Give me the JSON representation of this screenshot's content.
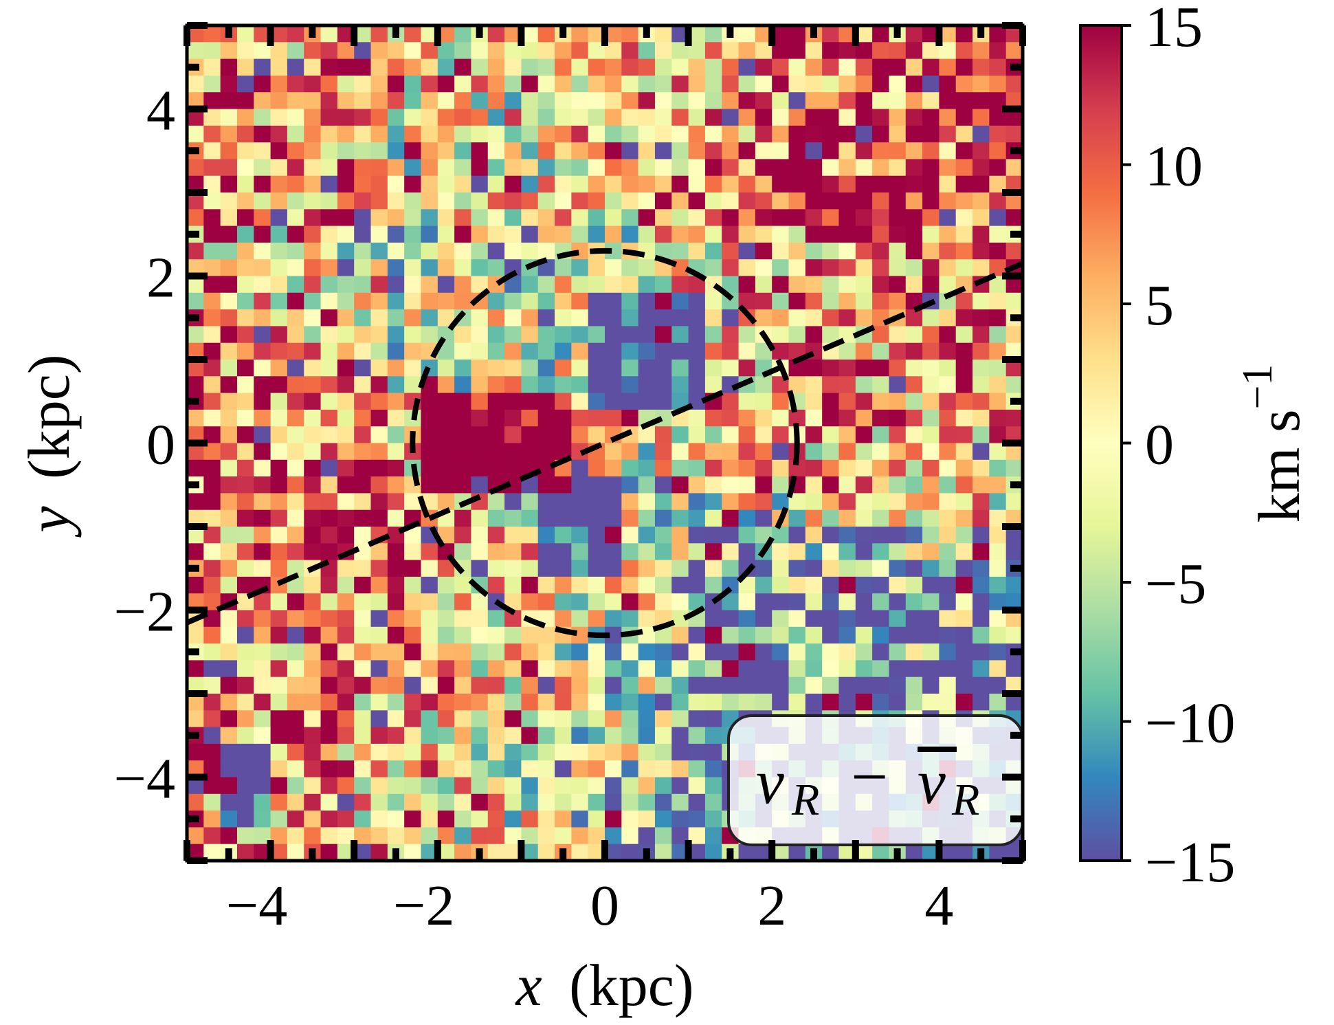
{
  "chart_data": {
    "type": "heatmap",
    "title": "",
    "xlabel_var": "x",
    "xlabel_unit": "(kpc)",
    "ylabel_var": "y",
    "ylabel_unit": "(kpc)",
    "xlim": [
      -5,
      5
    ],
    "ylim": [
      -5,
      5
    ],
    "x_ticks": [
      -4,
      -2,
      0,
      2,
      4
    ],
    "y_ticks": [
      -4,
      -2,
      0,
      2,
      4
    ],
    "x_tick_labels": [
      "−4",
      "−2",
      "0",
      "2",
      "4"
    ],
    "y_tick_labels": [
      "−4",
      "−2",
      "0",
      "2",
      "4"
    ],
    "bin_size_kpc": 0.2,
    "grid": false,
    "colormap": "Spectral_r",
    "colorbar": {
      "label_main": "km s",
      "label_exp": "−1",
      "vmin": -15,
      "vmax": 15,
      "ticks": [
        15,
        10,
        5,
        0,
        -5,
        -10,
        -15
      ],
      "tick_labels": [
        "15",
        "10",
        "5",
        "0",
        "−5",
        "−10",
        "−15"
      ],
      "colors": [
        "#5e4fa2",
        "#3288bd",
        "#66c2a5",
        "#abdda4",
        "#e6f598",
        "#ffffbf",
        "#fee08b",
        "#fdae61",
        "#f46d43",
        "#d53e4f",
        "#9e0142"
      ]
    },
    "legend": {
      "placement": "bottom-right",
      "text_left": "v",
      "sub_left": "R",
      "minus": "−",
      "text_right": "v",
      "sub_right": "R",
      "right_has_overbar": true
    },
    "overlays": [
      {
        "type": "circle",
        "style": "dashed",
        "center": [
          0,
          0
        ],
        "radius_kpc": 2.3,
        "color": "#000000"
      },
      {
        "type": "line",
        "style": "dashed",
        "from": [
          -5,
          -2.15
        ],
        "to": [
          5,
          2.15
        ],
        "color": "#000000"
      }
    ],
    "seed": 12345
  }
}
